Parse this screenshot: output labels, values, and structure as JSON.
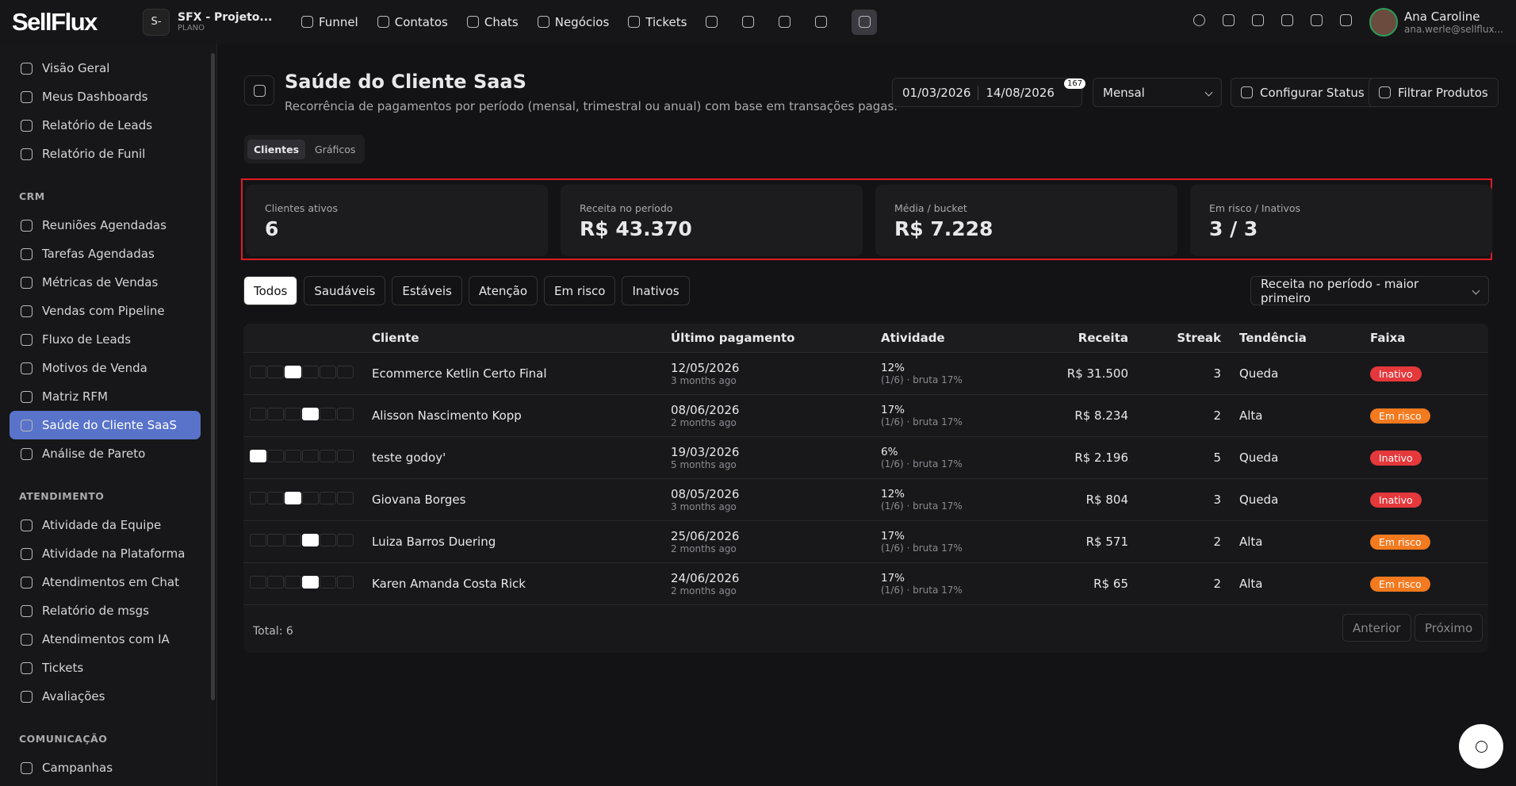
{
  "topbar": {
    "logo": "SellFlux",
    "project": {
      "initial": "S-",
      "name": "SFX - Projeto...",
      "plan": "PLANO"
    },
    "nav": [
      "Funnel",
      "Contatos",
      "Chats",
      "Negócios",
      "Tickets"
    ],
    "user": {
      "name": "Ana Caroline",
      "email": "ana.werle@sellflux..."
    }
  },
  "sidebar": {
    "items": [
      "Visão Geral",
      "Meus Dashboards",
      "Relatório de Leads",
      "Relatório de Funil"
    ],
    "sections": [
      {
        "title": "CRM",
        "items": [
          "Reuniões Agendadas",
          "Tarefas Agendadas",
          "Métricas de Vendas",
          "Vendas com Pipeline",
          "Fluxo de Leads",
          "Motivos de Venda",
          "Matriz RFM",
          "Saúde do Cliente SaaS",
          "Análise de Pareto"
        ]
      },
      {
        "title": "ATENDIMENTO",
        "items": [
          "Atividade da Equipe",
          "Atividade na Plataforma",
          "Atendimentos em Chat",
          "Relatório de msgs",
          "Atendimentos com IA",
          "Tickets",
          "Avaliações"
        ]
      },
      {
        "title": "COMUNICAÇÃO",
        "items": [
          "Campanhas"
        ]
      }
    ],
    "active": "Saúde do Cliente SaaS"
  },
  "header": {
    "title": "Saúde do Cliente SaaS",
    "subtitle": "Recorrência de pagamentos por período (mensal, trimestral ou anual) com base em transações pagas.",
    "date_start": "01/03/2026",
    "date_end": "14/08/2026",
    "badge": "167",
    "period": "Mensal",
    "buttons": [
      "Configurar Status",
      "Filtrar Produtos"
    ]
  },
  "tabs": [
    "Clientes",
    "Gráficos"
  ],
  "kpis": [
    {
      "label": "Clientes ativos",
      "value": "6"
    },
    {
      "label": "Receita no período",
      "value": "R$ 43.370"
    },
    {
      "label": "Média / bucket",
      "value": "R$ 7.228"
    },
    {
      "label": "Em risco / Inativos",
      "value": "3 / 3"
    }
  ],
  "filters": [
    "Todos",
    "Saudáveis",
    "Estáveis",
    "Atenção",
    "Em risco",
    "Inativos"
  ],
  "sort": "Receita no período - maior primeiro",
  "table": {
    "columns": [
      "Cliente",
      "Último pagamento",
      "Atividade",
      "Receita",
      "Streak",
      "Tendência",
      "Faixa"
    ],
    "rows": [
      {
        "slots": [
          0,
          0,
          1,
          0,
          0,
          0
        ],
        "cliente": "Ecommerce Ketlin Certo Final",
        "data": "12/05/2026",
        "ago": "3 months ago",
        "pct": "12%",
        "detail": "(1/6) · bruta 17%",
        "receita": "R$ 31.500",
        "streak": 3,
        "tendencia": "Queda",
        "faixa": "Inativo"
      },
      {
        "slots": [
          0,
          0,
          0,
          1,
          0,
          0
        ],
        "cliente": "Alisson Nascimento Kopp",
        "data": "08/06/2026",
        "ago": "2 months ago",
        "pct": "17%",
        "detail": "(1/6) · bruta 17%",
        "receita": "R$ 8.234",
        "streak": 2,
        "tendencia": "Alta",
        "faixa": "Em risco"
      },
      {
        "slots": [
          1,
          0,
          0,
          0,
          0,
          0
        ],
        "cliente": "teste godoy'",
        "data": "19/03/2026",
        "ago": "5 months ago",
        "pct": "6%",
        "detail": "(1/6) · bruta 17%",
        "receita": "R$ 2.196",
        "streak": 5,
        "tendencia": "Queda",
        "faixa": "Inativo"
      },
      {
        "slots": [
          0,
          0,
          1,
          0,
          0,
          0
        ],
        "cliente": "Giovana Borges",
        "data": "08/05/2026",
        "ago": "3 months ago",
        "pct": "12%",
        "detail": "(1/6) · bruta 17%",
        "receita": "R$ 804",
        "streak": 3,
        "tendencia": "Queda",
        "faixa": "Inativo"
      },
      {
        "slots": [
          0,
          0,
          0,
          1,
          0,
          0
        ],
        "cliente": "Luiza Barros Duering",
        "data": "25/06/2026",
        "ago": "2 months ago",
        "pct": "17%",
        "detail": "(1/6) · bruta 17%",
        "receita": "R$ 571",
        "streak": 2,
        "tendencia": "Alta",
        "faixa": "Em risco"
      },
      {
        "slots": [
          0,
          0,
          0,
          1,
          0,
          0
        ],
        "cliente": "Karen Amanda Costa Rick",
        "data": "24/06/2026",
        "ago": "2 months ago",
        "pct": "17%",
        "detail": "(1/6) · bruta 17%",
        "receita": "R$ 65",
        "streak": 2,
        "tendencia": "Alta",
        "faixa": "Em risco"
      }
    ],
    "total": "Total: 6",
    "pager": [
      "Anterior",
      "Próximo"
    ]
  }
}
